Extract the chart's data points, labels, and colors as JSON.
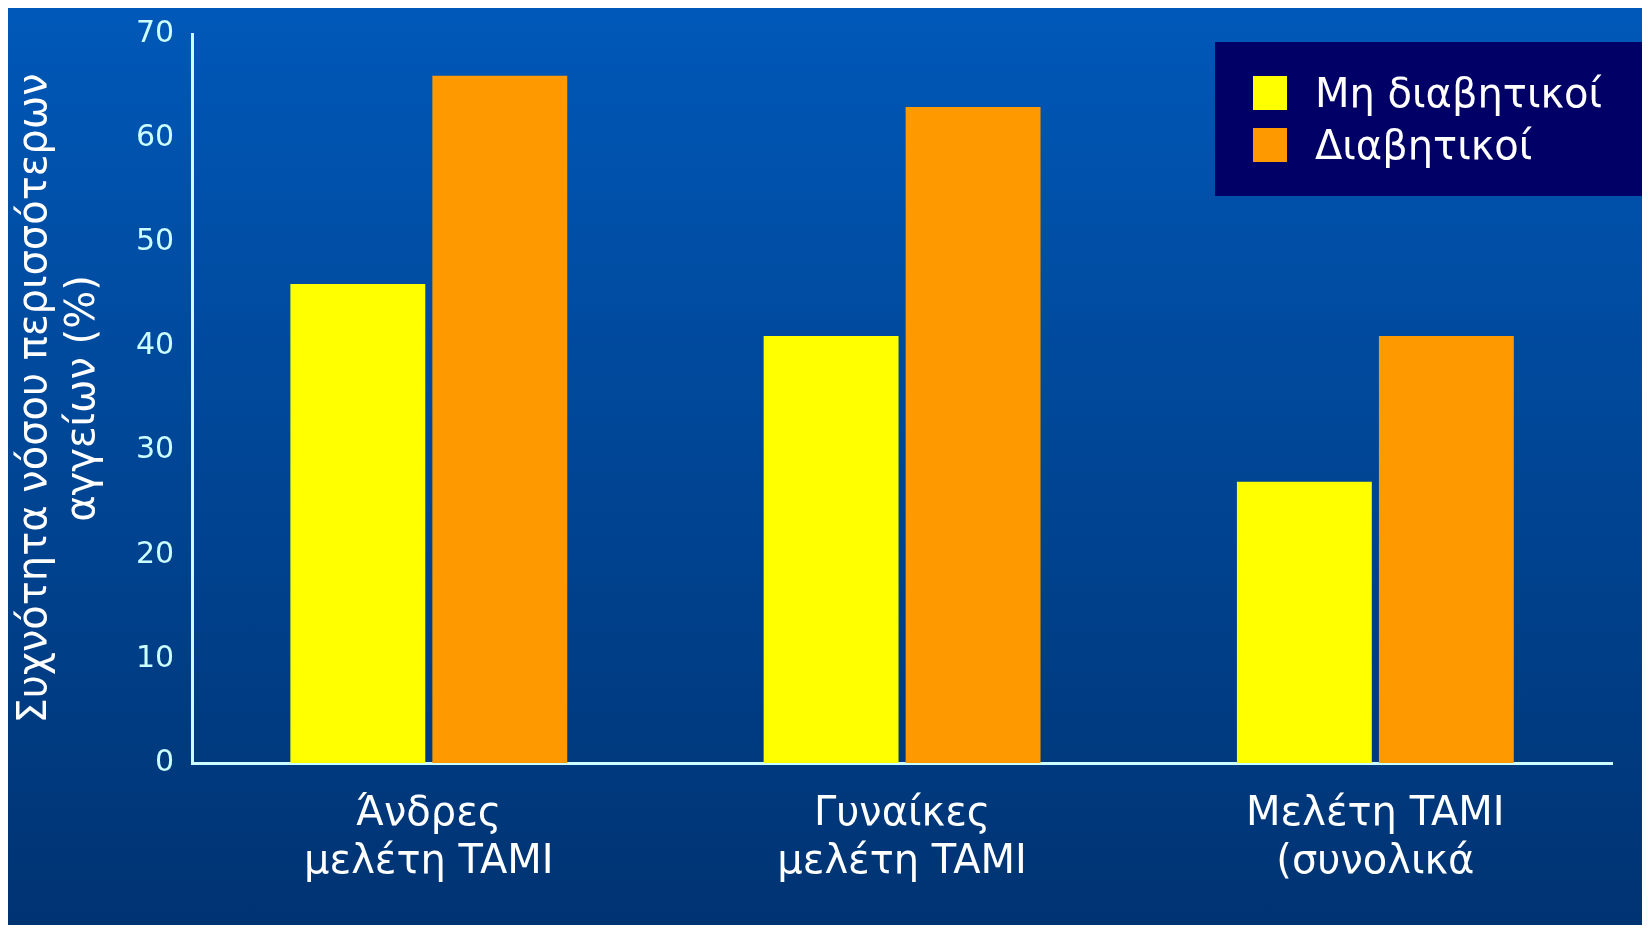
{
  "chart_data": {
    "type": "bar",
    "ylabel": "Συχνότητα νόσου περισσότερων\nαγγείων (%)",
    "categories": [
      "Άνδρες\nμελέτη TAMI",
      "Γυναίκες\nμελέτη TAMI",
      "Μελέτη TAMI\n(συνολικά"
    ],
    "series": [
      {
        "name": "Μη διαβητικοί",
        "color": "#ffff00",
        "values": [
          46,
          41,
          27
        ]
      },
      {
        "name": "Διαβητικοί",
        "color": "#ff9900",
        "values": [
          66,
          63,
          41
        ]
      }
    ],
    "ylim": [
      0,
      70
    ],
    "yticks": [
      0,
      10,
      20,
      30,
      40,
      50,
      60,
      70
    ],
    "grid": false,
    "legend": "top right"
  }
}
